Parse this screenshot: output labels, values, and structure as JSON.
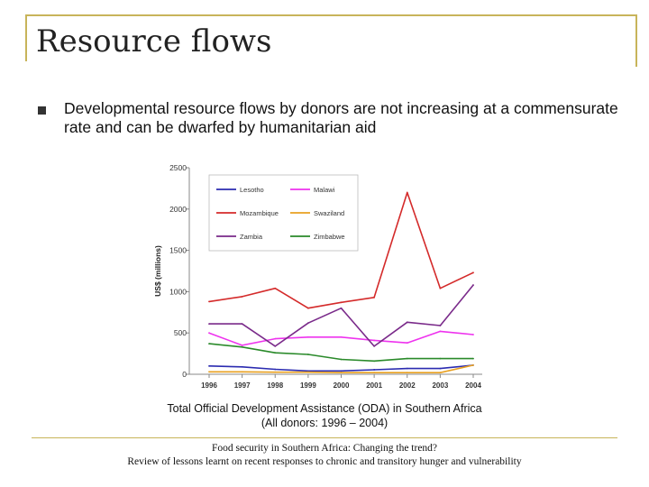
{
  "slide": {
    "title": "Resource flows",
    "bullet": "Developmental resource flows by donors are not increasing at a commensurate rate and can be dwarfed by humanitarian aid",
    "caption_line1": "Total Official Development Assistance (ODA) in Southern Africa",
    "caption_line2": "(All donors: 1996 – 2004)",
    "footer_line1": "Food security in Southern Africa: Changing the trend?",
    "footer_line2": "Review of lessons learnt on recent responses to chronic and transitory hunger and vulnerability"
  },
  "chart_data": {
    "type": "line",
    "ylabel": "US$ (millions)",
    "xlabel": "",
    "x": [
      "1996",
      "1997",
      "1998",
      "1999",
      "2000",
      "2001",
      "2002",
      "2003",
      "2004"
    ],
    "ylim": [
      0,
      2500
    ],
    "yticks": [
      0,
      500,
      1000,
      1500,
      2000,
      2500
    ],
    "grid": false,
    "legend": "top-left",
    "series": [
      {
        "name": "Lesotho",
        "color": "#2b2bb0",
        "values": [
          100,
          90,
          60,
          40,
          40,
          55,
          70,
          70,
          110
        ]
      },
      {
        "name": "Malawi",
        "color": "#ee33ee",
        "values": [
          500,
          350,
          430,
          450,
          450,
          410,
          380,
          520,
          480
        ]
      },
      {
        "name": "Mozambique",
        "color": "#d42a2a",
        "values": [
          880,
          940,
          1040,
          800,
          870,
          930,
          2200,
          1040,
          1230
        ]
      },
      {
        "name": "Swaziland",
        "color": "#e8a020",
        "values": [
          30,
          30,
          25,
          25,
          20,
          20,
          20,
          20,
          110
        ]
      },
      {
        "name": "Zambia",
        "color": "#7a2a8a",
        "values": [
          610,
          610,
          340,
          620,
          800,
          340,
          630,
          590,
          1080
        ]
      },
      {
        "name": "Zimbabwe",
        "color": "#2a8a2a",
        "values": [
          370,
          330,
          260,
          240,
          180,
          160,
          190,
          190,
          190
        ]
      }
    ]
  }
}
